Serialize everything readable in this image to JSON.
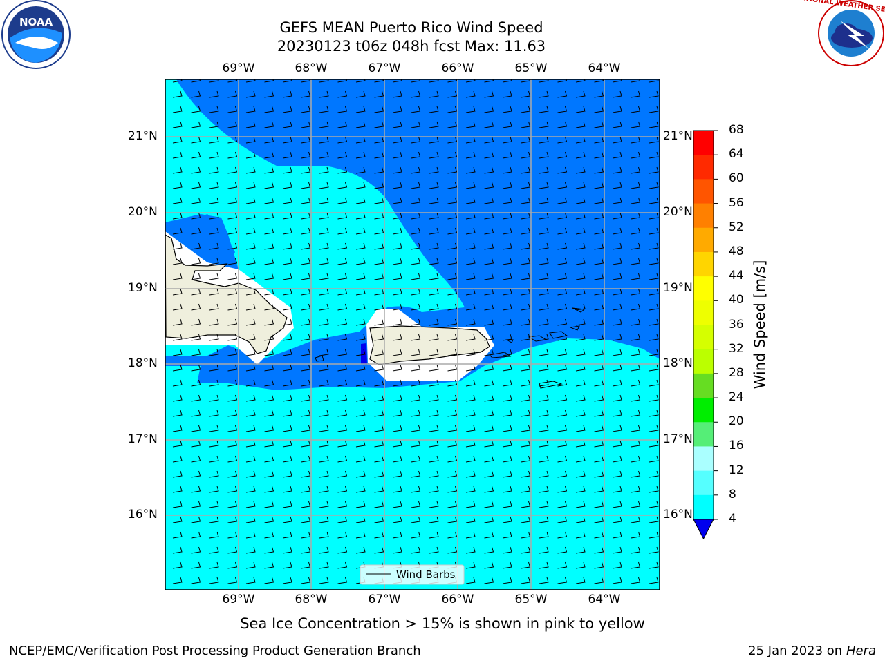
{
  "header": {
    "title_line1": "GEFS MEAN Puerto Rico Wind Speed",
    "title_line2": "20230123 t06z 048h fcst   Max: 11.63"
  },
  "logos": {
    "left": "NOAA",
    "right": "NATIONAL WEATHER SERVICE"
  },
  "axes": {
    "lon_labels": [
      "69°W",
      "68°W",
      "67°W",
      "66°W",
      "65°W",
      "64°W"
    ],
    "lat_labels": [
      "21°N",
      "20°N",
      "19°N",
      "18°N",
      "17°N",
      "16°N"
    ]
  },
  "colorbar": {
    "label": "Wind Speed [m/s]",
    "ticks": [
      "68",
      "64",
      "60",
      "56",
      "52",
      "48",
      "44",
      "40",
      "36",
      "32",
      "28",
      "24",
      "20",
      "16",
      "12",
      "8",
      "4"
    ],
    "colors": [
      "#ff0000",
      "#ff2a00",
      "#ff5500",
      "#ff8000",
      "#ffaa00",
      "#ffd500",
      "#ffff00",
      "#eeff00",
      "#d5ff00",
      "#bbff00",
      "#66dd22",
      "#00ee00",
      "#55ee77",
      "#aaffff",
      "#55ffff",
      "#00ffff",
      "#0077ff"
    ],
    "under_color": "#0000ee"
  },
  "legend": {
    "label": "Wind Barbs"
  },
  "colors": {
    "sea_light": "#00ffff",
    "sea_dark": "#0077ff",
    "land": "#efefdd",
    "grid": "#aaaaaa"
  },
  "footer": {
    "note": "Sea Ice Concentration > 15% is shown in pink to yellow",
    "left": "NCEP/EMC/Verification Post Processing Product Generation Branch",
    "right_prefix": "25 Jan 2023 on ",
    "right_machine": "Hera"
  }
}
